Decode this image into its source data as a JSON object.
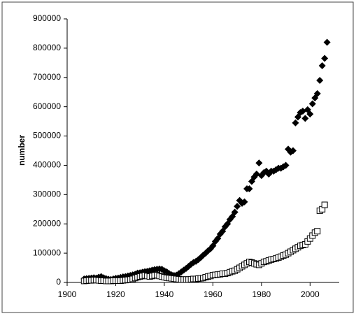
{
  "chart_data": {
    "type": "scatter",
    "y_label": "number",
    "x": [
      1907,
      1908,
      1909,
      1910,
      1911,
      1912,
      1913,
      1914,
      1915,
      1916,
      1917,
      1918,
      1919,
      1920,
      1921,
      1922,
      1923,
      1924,
      1925,
      1926,
      1927,
      1928,
      1929,
      1930,
      1931,
      1932,
      1933,
      1934,
      1935,
      1936,
      1937,
      1938,
      1939,
      1940,
      1941,
      1942,
      1943,
      1944,
      1945,
      1946,
      1947,
      1948,
      1949,
      1950,
      1951,
      1952,
      1953,
      1954,
      1955,
      1956,
      1957,
      1958,
      1959,
      1960,
      1961,
      1962,
      1963,
      1964,
      1965,
      1966,
      1967,
      1968,
      1969,
      1970,
      1971,
      1972,
      1973,
      1974,
      1975,
      1976,
      1977,
      1978,
      1979,
      1980,
      1981,
      1982,
      1983,
      1984,
      1985,
      1986,
      1987,
      1988,
      1989,
      1990,
      1991,
      1992,
      1993,
      1994,
      1995,
      1996,
      1997,
      1998,
      1999,
      2000,
      2001,
      2002,
      2003,
      2004,
      2005,
      2006,
      2007
    ],
    "series": [
      {
        "marker": "diamond",
        "color": "#000000",
        "values": [
          12000,
          13000,
          14000,
          15000,
          16000,
          15000,
          18000,
          20000,
          16000,
          13000,
          11000,
          10000,
          12000,
          14000,
          15000,
          17000,
          19000,
          20000,
          22000,
          24000,
          26000,
          28000,
          32000,
          33000,
          35000,
          37000,
          38000,
          40000,
          42000,
          44000,
          45000,
          46000,
          45000,
          40000,
          36000,
          30000,
          26000,
          24000,
          25000,
          30000,
          36000,
          42000,
          48000,
          55000,
          62000,
          68000,
          72000,
          78000,
          85000,
          93000,
          100000,
          108000,
          115000,
          125000,
          140000,
          150000,
          165000,
          175000,
          190000,
          200000,
          215000,
          225000,
          240000,
          260000,
          280000,
          270000,
          275000,
          320000,
          320000,
          345000,
          360000,
          370000,
          408000,
          365000,
          375000,
          380000,
          370000,
          380000,
          380000,
          385000,
          390000,
          390000,
          395000,
          400000,
          455000,
          445000,
          450000,
          545000,
          565000,
          580000,
          585000,
          560000,
          590000,
          575000,
          610000,
          630000,
          645000,
          690000,
          740000,
          765000,
          820000
        ]
      },
      {
        "marker": "square",
        "color": "#000000",
        "values": [
          5000,
          6000,
          7000,
          7000,
          8000,
          8000,
          7000,
          6000,
          6000,
          5000,
          5000,
          5000,
          6000,
          6000,
          6000,
          6000,
          7000,
          8000,
          9000,
          10000,
          12000,
          15000,
          18000,
          20000,
          22000,
          24000,
          22000,
          20000,
          22000,
          24000,
          25000,
          22000,
          20000,
          18000,
          16000,
          15000,
          14000,
          13000,
          12000,
          11000,
          10000,
          10000,
          10000,
          10000,
          11000,
          12000,
          12000,
          13000,
          14000,
          15000,
          18000,
          20000,
          22000,
          25000,
          26000,
          27000,
          28000,
          30000,
          30000,
          32000,
          35000,
          38000,
          40000,
          45000,
          50000,
          55000,
          60000,
          65000,
          70000,
          68000,
          65000,
          62000,
          60000,
          65000,
          70000,
          72000,
          75000,
          78000,
          80000,
          82000,
          85000,
          88000,
          92000,
          95000,
          100000,
          105000,
          110000,
          115000,
          120000,
          125000,
          128000,
          130000,
          140000,
          150000,
          160000,
          170000,
          175000,
          245000,
          250000,
          265000,
          null
        ]
      }
    ],
    "xlim": [
      1900,
      2012
    ],
    "xticks": [
      1900,
      1920,
      1940,
      1960,
      1980,
      2000
    ],
    "ylim": [
      0,
      900000
    ],
    "yticks": [
      0,
      100000,
      200000,
      300000,
      400000,
      500000,
      600000,
      700000,
      800000,
      900000
    ],
    "grid": false
  }
}
